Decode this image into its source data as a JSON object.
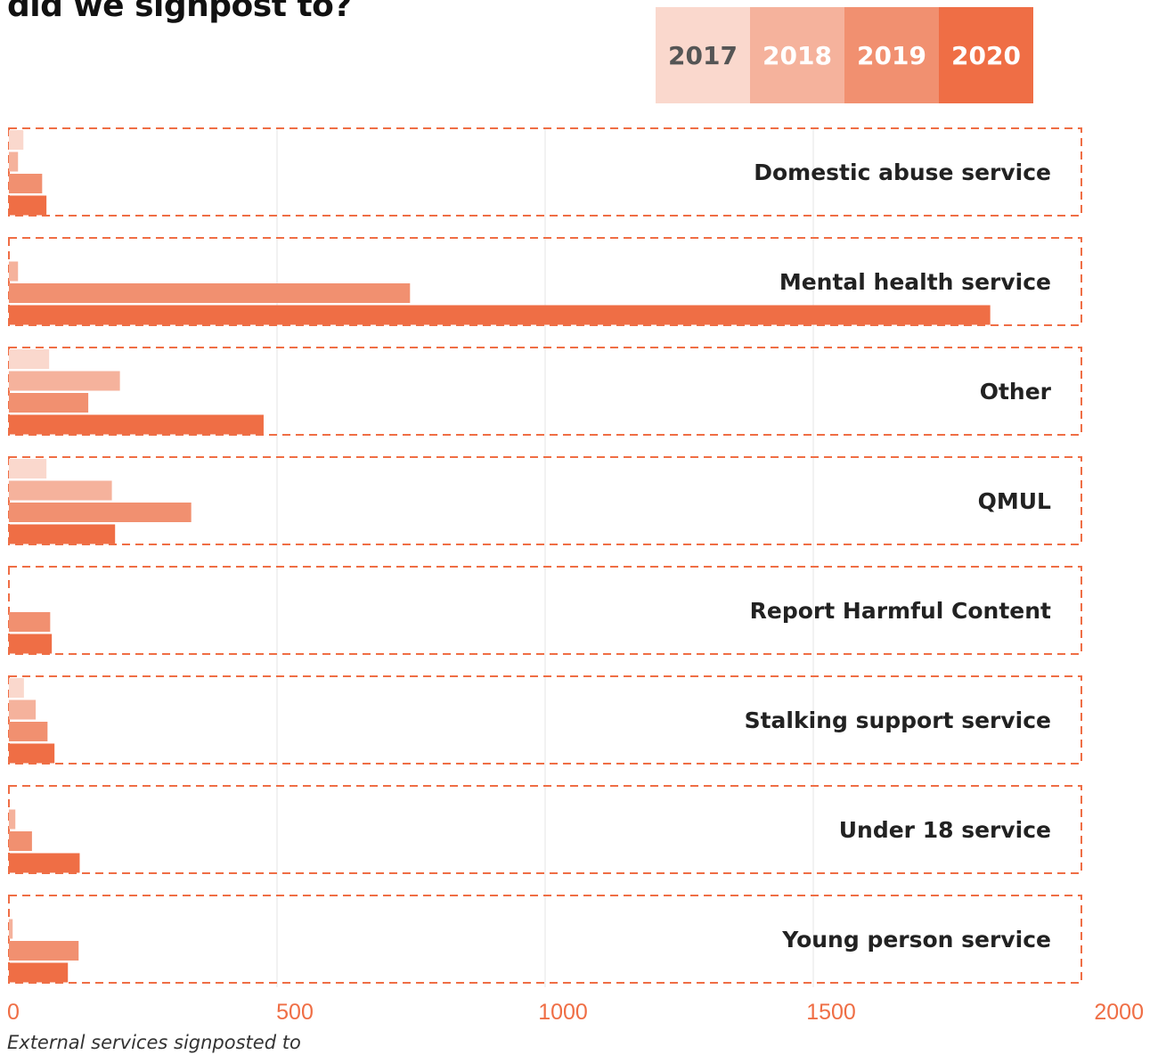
{
  "title_fragment": "did we signpost to?",
  "caption": "External services signposted to",
  "legend": [
    {
      "label": "2017",
      "color": "#FAD8CD",
      "text_color": "#555555"
    },
    {
      "label": "2018",
      "color": "#F5B29C",
      "text_color": "#FFFFFF"
    },
    {
      "label": "2019",
      "color": "#F19070",
      "text_color": "#FFFFFF"
    },
    {
      "label": "2020",
      "color": "#EF6E45",
      "text_color": "#FFFFFF"
    }
  ],
  "chart_data": {
    "type": "bar",
    "orientation": "horizontal",
    "categories": [
      "Domestic abuse service",
      "Mental health service",
      "Other",
      "QMUL",
      "Report Harmful Content",
      "Stalking support service",
      "Under 18 service",
      "Young person service"
    ],
    "series": [
      {
        "name": "2017",
        "color": "#FAD8CD",
        "values": [
          27,
          0,
          75,
          70,
          0,
          28,
          0,
          0
        ]
      },
      {
        "name": "2018",
        "color": "#F5B29C",
        "values": [
          17,
          17,
          207,
          192,
          0,
          50,
          12,
          7
        ]
      },
      {
        "name": "2019",
        "color": "#F19070",
        "values": [
          62,
          748,
          148,
          340,
          77,
          72,
          43,
          130
        ]
      },
      {
        "name": "2020",
        "color": "#EF6E45",
        "values": [
          70,
          1830,
          475,
          198,
          80,
          85,
          132,
          110
        ]
      }
    ],
    "x_ticks": [
      "0",
      "500",
      "1000",
      "1500",
      "2000"
    ],
    "xlim": [
      0,
      2000
    ],
    "grid": true,
    "legend_position": "top-right",
    "frame_color": "#EF6E45",
    "tick_color": "#EF6E45"
  }
}
